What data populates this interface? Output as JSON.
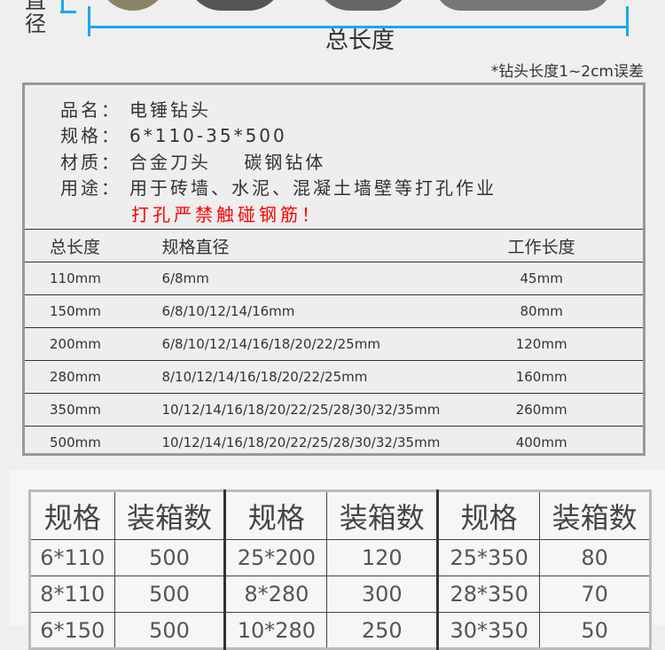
{
  "diagram": {
    "diameter_label": "直径",
    "length_label": "总长度",
    "note": "*钻头长度1~2cm误差",
    "accent": "#1ea7ea"
  },
  "info": {
    "rows": [
      {
        "key": "品名：",
        "value": "电锤钻头"
      },
      {
        "key": "规格：",
        "value": "6*110-35*500"
      },
      {
        "key": "材质：",
        "value": "合金刀头    碳钢钻体"
      },
      {
        "key": "用途：",
        "value": "用于砖墙、水泥、混凝土墙壁等打孔作业"
      }
    ],
    "warning": "打孔严禁触碰钢筋！",
    "warning_color": "#ff0000"
  },
  "spec_table": {
    "headers": [
      "总长度",
      "规格直径",
      "工作长度"
    ],
    "rows": [
      [
        "110mm",
        "6/8mm",
        "45mm"
      ],
      [
        "150mm",
        "6/8/10/12/14/16mm",
        "80mm"
      ],
      [
        "200mm",
        "6/8/10/12/14/16/18/20/22/25mm",
        "120mm"
      ],
      [
        "280mm",
        "8/10/12/14/16/18/20/22/25mm",
        "160mm"
      ],
      [
        "350mm",
        "10/12/14/16/18/20/22/25/28/30/32/35mm",
        "260mm"
      ],
      [
        "500mm",
        "10/12/14/16/18/20/22/25/28/30/32/35mm",
        "400mm"
      ]
    ]
  },
  "pack_table": {
    "headers": [
      "规格",
      "装箱数",
      "规格",
      "装箱数",
      "规格",
      "装箱数"
    ],
    "rows": [
      [
        "6*110",
        "500",
        "25*200",
        "120",
        "25*350",
        "80"
      ],
      [
        "8*110",
        "500",
        "8*280",
        "300",
        "28*350",
        "70"
      ],
      [
        "6*150",
        "500",
        "10*280",
        "250",
        "30*350",
        "50"
      ]
    ]
  }
}
